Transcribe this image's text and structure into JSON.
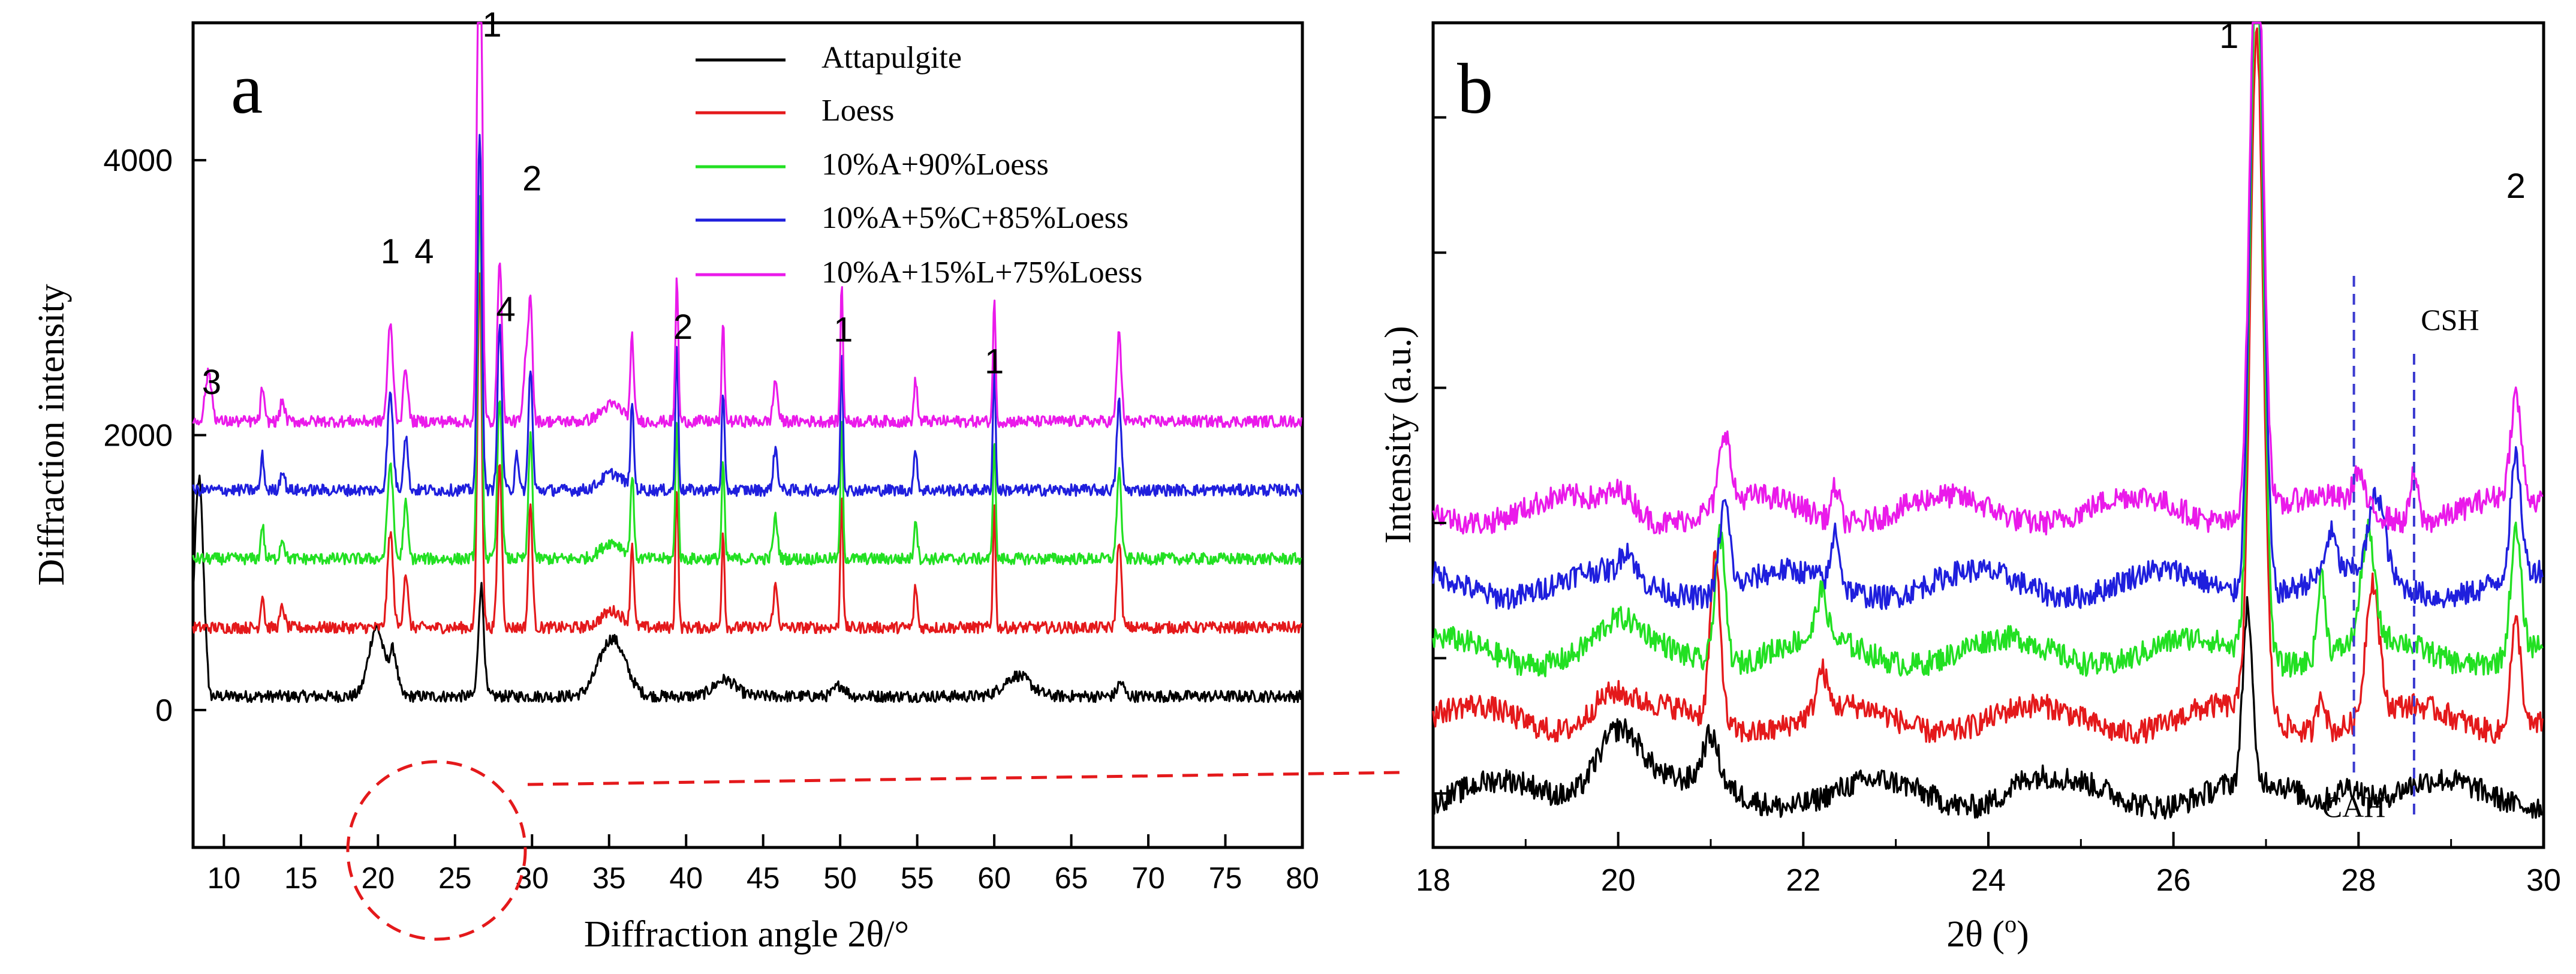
{
  "colors": {
    "attapulgite": "#000000",
    "loess": "#e4191b",
    "a10_l90": "#22e022",
    "a10_c5_l85": "#1f1fdd",
    "a10_lime15_l75": "#ea1aea",
    "axes": "#000000",
    "connector": "#e4191b",
    "ref_line": "#3a3ad0"
  },
  "chart_data": [
    {
      "panel_label": "a",
      "type": "line",
      "xlabel": "Diffraction angle 2θ/°",
      "ylabel": "Diffraction intensity",
      "xlim": [
        8,
        80
      ],
      "ylim": [
        -1000,
        5000
      ],
      "x_ticks": [
        "10",
        "15",
        "20",
        "25",
        "30",
        "35",
        "40",
        "45",
        "50",
        "55",
        "60",
        "65",
        "70",
        "75",
        "80"
      ],
      "y_ticks": [
        "0",
        "2000",
        "4000"
      ],
      "legend": {
        "placement": "top-right",
        "entries": [
          "Attapulgite",
          "Loess",
          "10%A+90%Loess",
          "10%A+5%C+85%Loess",
          "10%A+15%L+75%Loess"
        ]
      },
      "series": [
        {
          "name": "Attapulgite",
          "baseline": 100,
          "color_key": "attapulgite"
        },
        {
          "name": "Loess",
          "baseline": 600,
          "color_key": "loess"
        },
        {
          "name": "10%A+90%Loess",
          "baseline": 1100,
          "color_key": "a10_l90"
        },
        {
          "name": "10%A+5%C+85%Loess",
          "baseline": 1600,
          "color_key": "a10_c5_l85"
        },
        {
          "name": "10%A+15%L+75%Loess",
          "baseline": 2100,
          "color_key": "a10_lime15_l75"
        }
      ],
      "peak_annotations": [
        {
          "label": "3",
          "x": 9.2,
          "y": 2300
        },
        {
          "label": "1",
          "x": 20.8,
          "y": 3250
        },
        {
          "label": "4",
          "x": 23.0,
          "y": 3250
        },
        {
          "label": "1",
          "x": 27.4,
          "y": 4900
        },
        {
          "label": "4",
          "x": 28.3,
          "y": 2830
        },
        {
          "label": "2",
          "x": 30.0,
          "y": 3780
        },
        {
          "label": "2",
          "x": 39.8,
          "y": 2700
        },
        {
          "label": "1",
          "x": 50.2,
          "y": 2680
        },
        {
          "label": "1",
          "x": 60.0,
          "y": 2450
        }
      ]
    },
    {
      "panel_label": "b",
      "type": "line",
      "xlabel": "2θ (o)",
      "ylabel": "Intensity (a.u.)",
      "xlim": [
        18,
        30
      ],
      "x_ticks": [
        "18",
        "20",
        "22",
        "24",
        "26",
        "28",
        "30"
      ],
      "series": [
        {
          "name": "Attapulgite",
          "color_key": "attapulgite"
        },
        {
          "name": "Loess",
          "color_key": "loess"
        },
        {
          "name": "10%A+90%Loess",
          "color_key": "a10_l90"
        },
        {
          "name": "10%A+5%C+85%Loess",
          "color_key": "a10_c5_l85"
        },
        {
          "name": "10%A+15%L+75%Loess",
          "color_key": "a10_lime15_l75"
        }
      ],
      "peak_annotations": [
        {
          "label": "1",
          "x": 26.6
        },
        {
          "label": "2",
          "x": 29.7
        }
      ],
      "reference_lines": [
        {
          "label": "CAH",
          "x": 27.95
        },
        {
          "label": "CSH",
          "x": 28.6
        }
      ]
    }
  ]
}
